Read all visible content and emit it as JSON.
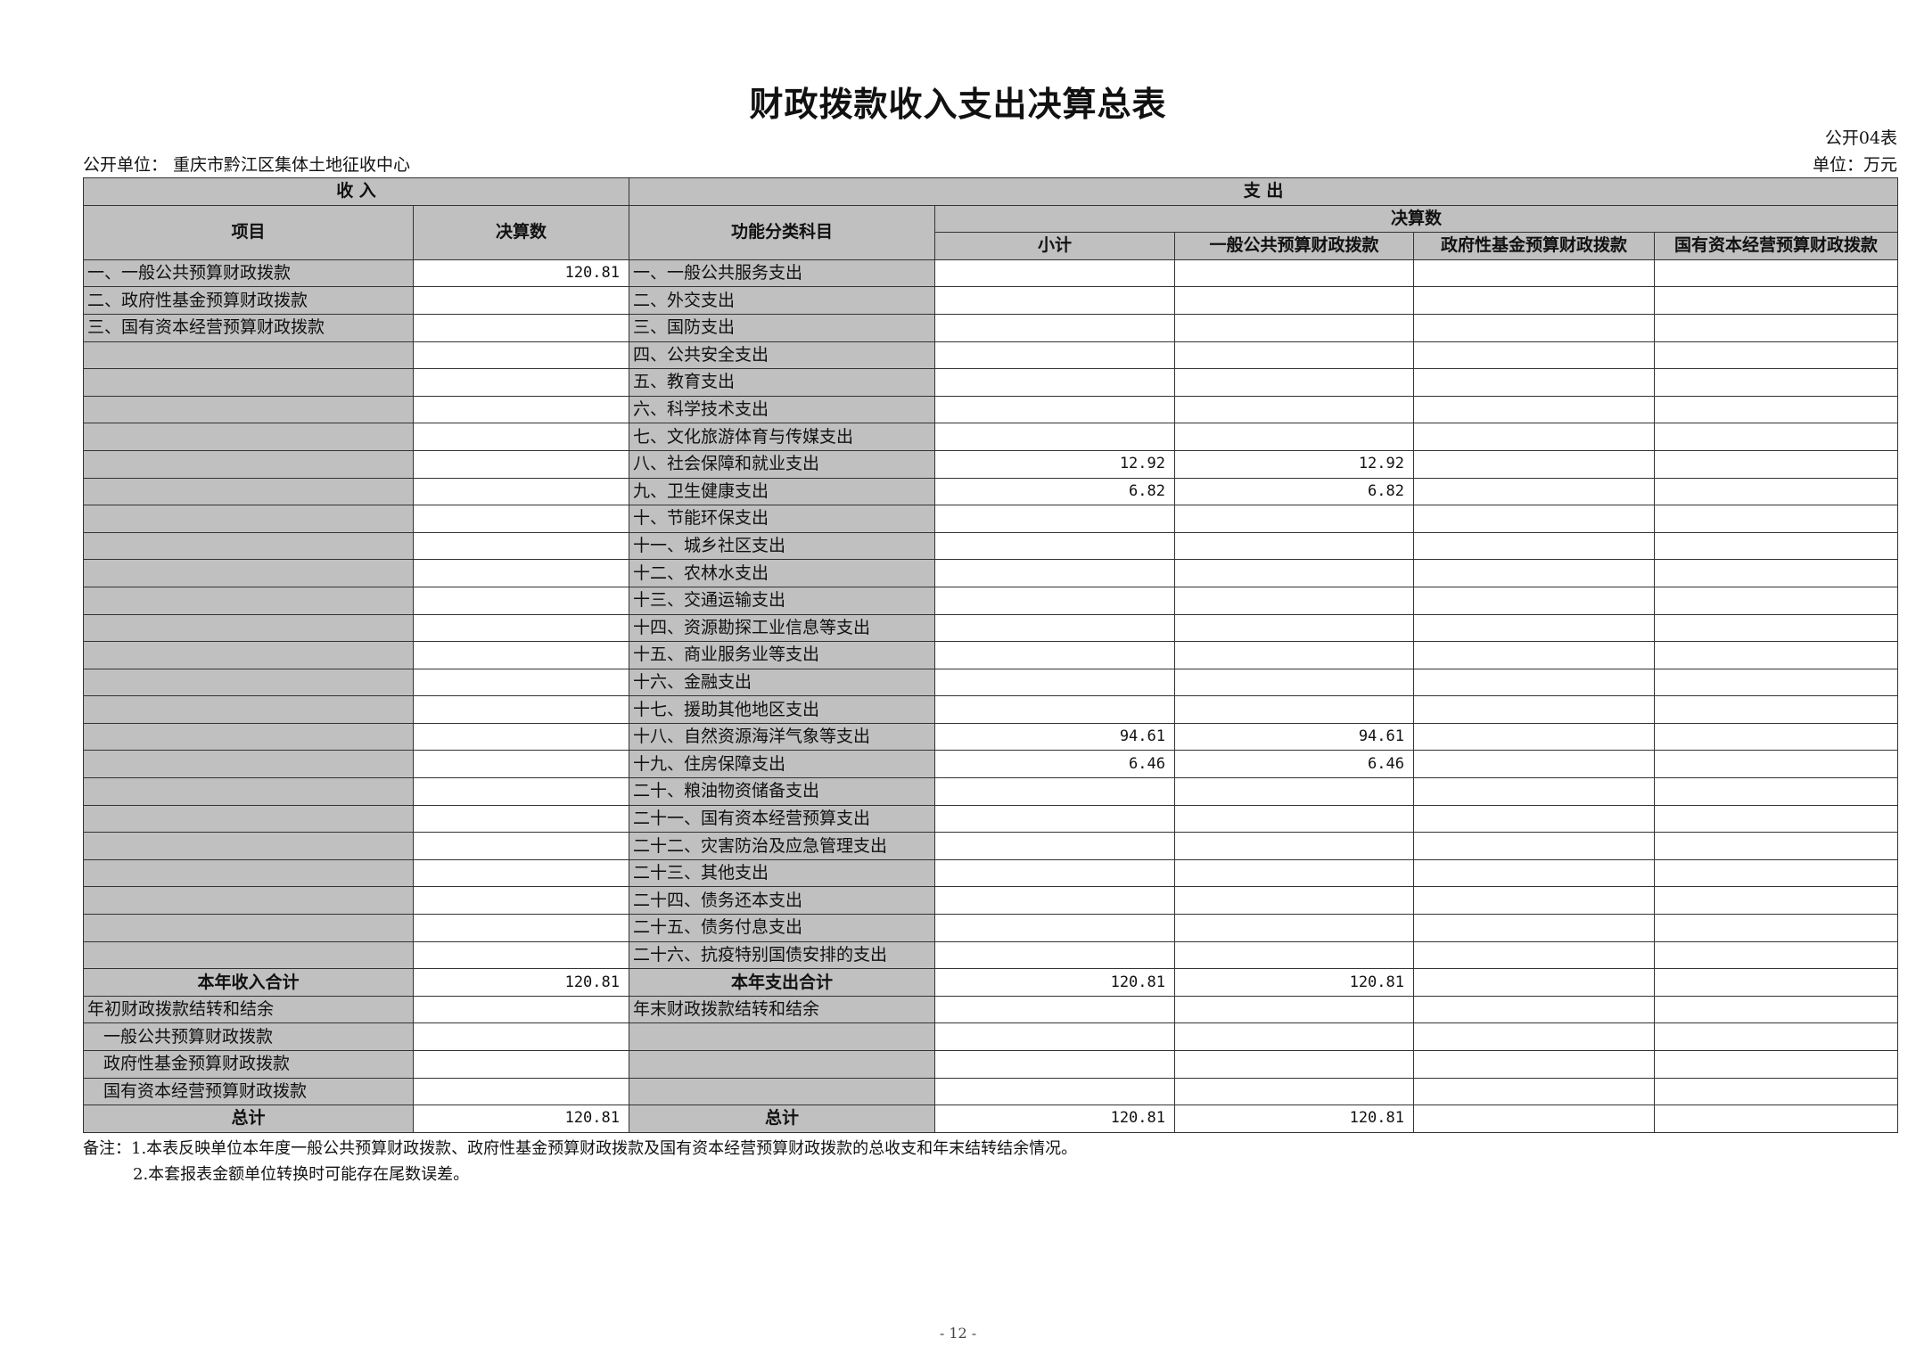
{
  "title": "财政拨款收入支出决算总表",
  "table_no": "公开04表",
  "unit_left": "公开单位：  重庆市黔江区集体土地征收中心",
  "unit_right": "单位：万元",
  "header": {
    "income": "收      入",
    "expense": "支      出",
    "item": "项目",
    "amount": "决算数",
    "function": "功能分类科目",
    "settle": "决算数",
    "subtotal": "小计",
    "general": "一般公共预算财政拨款",
    "fund": "政府性基金预算财政拨款",
    "state": "国有资本经营预算财政拨款"
  },
  "rows": [
    {
      "income_item": "一、一般公共预算财政拨款",
      "income_amount": "120.81",
      "function": "一、一般公共服务支出",
      "subtotal": "",
      "general": "",
      "fund": "",
      "state": ""
    },
    {
      "income_item": "二、政府性基金预算财政拨款",
      "income_amount": "",
      "function": "二、外交支出",
      "subtotal": "",
      "general": "",
      "fund": "",
      "state": ""
    },
    {
      "income_item": "三、国有资本经营预算财政拨款",
      "income_amount": "",
      "function": "三、国防支出",
      "subtotal": "",
      "general": "",
      "fund": "",
      "state": ""
    },
    {
      "income_item": "",
      "income_amount": "",
      "function": "四、公共安全支出",
      "subtotal": "",
      "general": "",
      "fund": "",
      "state": ""
    },
    {
      "income_item": "",
      "income_amount": "",
      "function": "五、教育支出",
      "subtotal": "",
      "general": "",
      "fund": "",
      "state": ""
    },
    {
      "income_item": "",
      "income_amount": "",
      "function": "六、科学技术支出",
      "subtotal": "",
      "general": "",
      "fund": "",
      "state": ""
    },
    {
      "income_item": "",
      "income_amount": "",
      "function": "七、文化旅游体育与传媒支出",
      "subtotal": "",
      "general": "",
      "fund": "",
      "state": ""
    },
    {
      "income_item": "",
      "income_amount": "",
      "function": "八、社会保障和就业支出",
      "subtotal": "12.92",
      "general": "12.92",
      "fund": "",
      "state": ""
    },
    {
      "income_item": "",
      "income_amount": "",
      "function": "九、卫生健康支出",
      "subtotal": "6.82",
      "general": "6.82",
      "fund": "",
      "state": ""
    },
    {
      "income_item": "",
      "income_amount": "",
      "function": "十、节能环保支出",
      "subtotal": "",
      "general": "",
      "fund": "",
      "state": ""
    },
    {
      "income_item": "",
      "income_amount": "",
      "function": "十一、城乡社区支出",
      "subtotal": "",
      "general": "",
      "fund": "",
      "state": ""
    },
    {
      "income_item": "",
      "income_amount": "",
      "function": "十二、农林水支出",
      "subtotal": "",
      "general": "",
      "fund": "",
      "state": ""
    },
    {
      "income_item": "",
      "income_amount": "",
      "function": "十三、交通运输支出",
      "subtotal": "",
      "general": "",
      "fund": "",
      "state": ""
    },
    {
      "income_item": "",
      "income_amount": "",
      "function": "十四、资源勘探工业信息等支出",
      "subtotal": "",
      "general": "",
      "fund": "",
      "state": ""
    },
    {
      "income_item": "",
      "income_amount": "",
      "function": "十五、商业服务业等支出",
      "subtotal": "",
      "general": "",
      "fund": "",
      "state": ""
    },
    {
      "income_item": "",
      "income_amount": "",
      "function": "十六、金融支出",
      "subtotal": "",
      "general": "",
      "fund": "",
      "state": ""
    },
    {
      "income_item": "",
      "income_amount": "",
      "function": "十七、援助其他地区支出",
      "subtotal": "",
      "general": "",
      "fund": "",
      "state": ""
    },
    {
      "income_item": "",
      "income_amount": "",
      "function": "十八、自然资源海洋气象等支出",
      "subtotal": "94.61",
      "general": "94.61",
      "fund": "",
      "state": ""
    },
    {
      "income_item": "",
      "income_amount": "",
      "function": "十九、住房保障支出",
      "subtotal": "6.46",
      "general": "6.46",
      "fund": "",
      "state": ""
    },
    {
      "income_item": "",
      "income_amount": "",
      "function": "二十、粮油物资储备支出",
      "subtotal": "",
      "general": "",
      "fund": "",
      "state": ""
    },
    {
      "income_item": "",
      "income_amount": "",
      "function": "二十一、国有资本经营预算支出",
      "subtotal": "",
      "general": "",
      "fund": "",
      "state": ""
    },
    {
      "income_item": "",
      "income_amount": "",
      "function": "二十二、灾害防治及应急管理支出",
      "subtotal": "",
      "general": "",
      "fund": "",
      "state": ""
    },
    {
      "income_item": "",
      "income_amount": "",
      "function": "二十三、其他支出",
      "subtotal": "",
      "general": "",
      "fund": "",
      "state": ""
    },
    {
      "income_item": "",
      "income_amount": "",
      "function": "二十四、债务还本支出",
      "subtotal": "",
      "general": "",
      "fund": "",
      "state": ""
    },
    {
      "income_item": "",
      "income_amount": "",
      "function": "二十五、债务付息支出",
      "subtotal": "",
      "general": "",
      "fund": "",
      "state": ""
    },
    {
      "income_item": "",
      "income_amount": "",
      "function": "二十六、抗疫特别国债安排的支出",
      "subtotal": "",
      "general": "",
      "fund": "",
      "state": ""
    },
    {
      "income_item": "本年收入合计",
      "income_amount": "120.81",
      "function": "本年支出合计",
      "subtotal": "120.81",
      "general": "120.81",
      "fund": "",
      "state": "",
      "style": "bold"
    },
    {
      "income_item": "年初财政拨款结转和结余",
      "income_amount": "",
      "function": "年末财政拨款结转和结余",
      "subtotal": "",
      "general": "",
      "fund": "",
      "state": ""
    },
    {
      "income_item": "一般公共预算财政拨款",
      "income_amount": "",
      "function": "",
      "subtotal": "",
      "general": "",
      "fund": "",
      "state": "",
      "style": "indent"
    },
    {
      "income_item": "政府性基金预算财政拨款",
      "income_amount": "",
      "function": "",
      "subtotal": "",
      "general": "",
      "fund": "",
      "state": "",
      "style": "indent"
    },
    {
      "income_item": "国有资本经营预算财政拨款",
      "income_amount": "",
      "function": "",
      "subtotal": "",
      "general": "",
      "fund": "",
      "state": "",
      "style": "indent"
    },
    {
      "income_item": "总计",
      "income_amount": "120.81",
      "function": "总计",
      "subtotal": "120.81",
      "general": "120.81",
      "fund": "",
      "state": "",
      "style": "bold"
    }
  ],
  "notes": [
    "备注：1.本表反映单位本年度一般公共预算财政拨款、政府性基金预算财政拨款及国有资本经营预算财政拨款的总收支和年末结转结余情况。",
    "2.本套报表金额单位转换时可能存在尾数误差。"
  ],
  "page_number": "- 12 -"
}
